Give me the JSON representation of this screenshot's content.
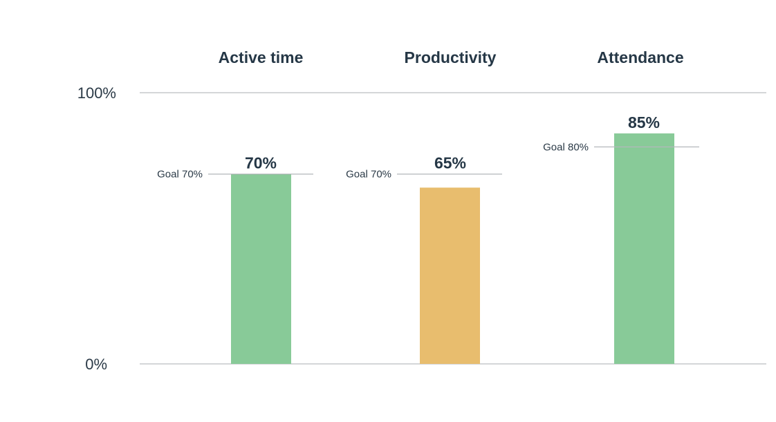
{
  "chart_data": {
    "type": "bar",
    "categories": [
      "Active time",
      "Productivity",
      "Attendance"
    ],
    "values": [
      70,
      65,
      85
    ],
    "value_labels": [
      "70%",
      "65%",
      "85%"
    ],
    "goals": [
      70,
      70,
      80
    ],
    "goal_labels": [
      "Goal 70%",
      "Goal 70%",
      "Goal 80%"
    ],
    "bar_colors": [
      "#88ca98",
      "#e8bd6e",
      "#88ca98"
    ],
    "ylim": [
      0,
      100
    ],
    "yticks": [
      0,
      100
    ],
    "ytick_labels": [
      "0%",
      "100%"
    ],
    "grid": false,
    "legend": "none"
  }
}
